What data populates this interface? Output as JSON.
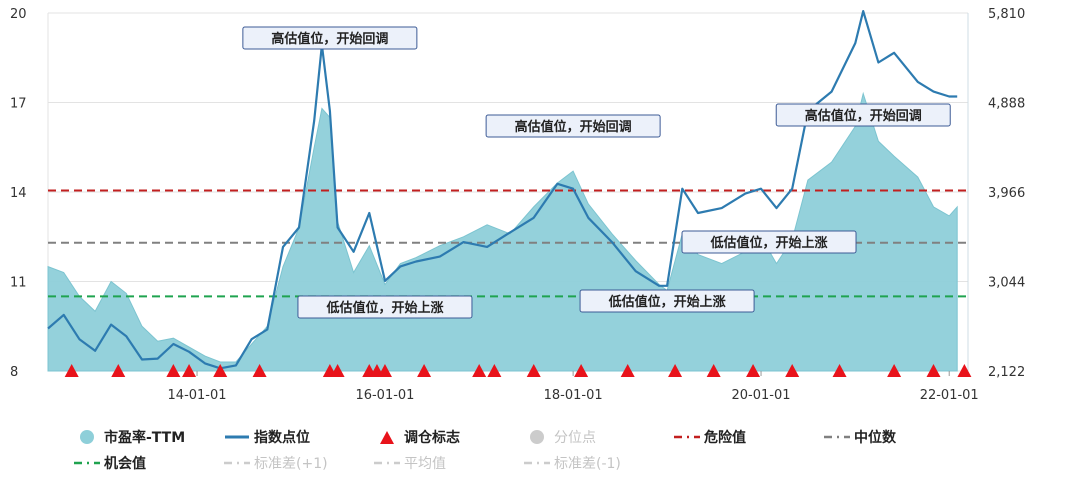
{
  "chart_data": {
    "type": "area+line",
    "x_ticks": [
      "14-01-01",
      "16-01-01",
      "18-01-01",
      "20-01-01",
      "22-01-01"
    ],
    "left_axis": {
      "ticks": [
        8,
        11,
        14,
        17,
        20
      ],
      "range": [
        8,
        20
      ]
    },
    "right_axis": {
      "ticks": [
        "2,122",
        "3,044",
        "3,966",
        "4,888",
        "5,810"
      ],
      "range": [
        2122,
        5810
      ]
    },
    "reference_lines": [
      {
        "name": "危险值",
        "value": 14.05,
        "color": "#c21f1f"
      },
      {
        "name": "中位数",
        "value": 12.3,
        "color": "#808080"
      },
      {
        "name": "机会值",
        "value": 10.5,
        "color": "#1fa34f"
      }
    ],
    "series": [
      {
        "name": "市盈率-TTM",
        "axis": "left",
        "color": "#8ecfd9",
        "x": [
          "2012-06",
          "2012-08",
          "2012-10",
          "2012-12",
          "2013-02",
          "2013-04",
          "2013-06",
          "2013-08",
          "2013-10",
          "2013-12",
          "2014-02",
          "2014-04",
          "2014-06",
          "2014-08",
          "2014-10",
          "2014-12",
          "2015-02",
          "2015-04",
          "2015-05",
          "2015-06",
          "2015-07",
          "2015-09",
          "2015-11",
          "2016-01",
          "2016-03",
          "2016-05",
          "2016-08",
          "2016-11",
          "2017-02",
          "2017-05",
          "2017-08",
          "2017-11",
          "2018-01",
          "2018-03",
          "2018-06",
          "2018-09",
          "2018-12",
          "2019-01",
          "2019-03",
          "2019-05",
          "2019-08",
          "2019-11",
          "2020-01",
          "2020-03",
          "2020-05",
          "2020-07",
          "2020-10",
          "2021-01",
          "2021-02",
          "2021-04",
          "2021-06",
          "2021-09",
          "2021-11",
          "2022-01",
          "2022-02"
        ],
        "values": [
          11.5,
          11.3,
          10.5,
          10.0,
          11.0,
          10.6,
          9.5,
          9.0,
          9.1,
          8.8,
          8.5,
          8.3,
          8.3,
          8.9,
          9.5,
          11.5,
          12.8,
          15.5,
          16.8,
          16.5,
          13.0,
          11.3,
          12.2,
          10.9,
          11.6,
          11.8,
          12.2,
          12.5,
          12.9,
          12.6,
          13.5,
          14.3,
          14.7,
          13.6,
          12.6,
          11.7,
          10.9,
          10.7,
          12.6,
          11.9,
          11.6,
          12.0,
          12.5,
          11.6,
          12.4,
          14.4,
          15.0,
          16.2,
          17.3,
          15.7,
          15.2,
          14.5,
          13.5,
          13.2,
          13.5
        ]
      },
      {
        "name": "指数点位",
        "axis": "right",
        "color": "#2d7bb0",
        "x": [
          "2012-06",
          "2012-08",
          "2012-10",
          "2012-12",
          "2013-02",
          "2013-04",
          "2013-06",
          "2013-08",
          "2013-10",
          "2013-12",
          "2014-02",
          "2014-04",
          "2014-06",
          "2014-08",
          "2014-10",
          "2014-12",
          "2015-02",
          "2015-04",
          "2015-05",
          "2015-06",
          "2015-07",
          "2015-09",
          "2015-11",
          "2016-01",
          "2016-03",
          "2016-05",
          "2016-08",
          "2016-11",
          "2017-02",
          "2017-05",
          "2017-08",
          "2017-11",
          "2018-01",
          "2018-03",
          "2018-06",
          "2018-09",
          "2018-12",
          "2019-01",
          "2019-03",
          "2019-05",
          "2019-08",
          "2019-11",
          "2020-01",
          "2020-03",
          "2020-05",
          "2020-07",
          "2020-10",
          "2021-01",
          "2021-02",
          "2021-04",
          "2021-06",
          "2021-09",
          "2021-11",
          "2022-01",
          "2022-02"
        ],
        "values": [
          2560,
          2700,
          2450,
          2330,
          2600,
          2480,
          2240,
          2250,
          2400,
          2320,
          2200,
          2150,
          2180,
          2450,
          2550,
          3400,
          3600,
          4700,
          5480,
          4800,
          3600,
          3350,
          3750,
          3050,
          3200,
          3250,
          3300,
          3450,
          3400,
          3550,
          3700,
          4050,
          4000,
          3700,
          3450,
          3150,
          3000,
          3000,
          4000,
          3750,
          3800,
          3950,
          4000,
          3800,
          4000,
          4800,
          5000,
          5500,
          5830,
          5300,
          5400,
          5100,
          5000,
          4950,
          4950
        ]
      }
    ],
    "signal_markers": {
      "name": "调仓标志",
      "color": "#e8131b",
      "x": [
        "2012-09",
        "2013-03",
        "2013-10",
        "2013-12",
        "2014-04",
        "2014-09",
        "2015-06",
        "2015-07",
        "2015-11",
        "2015-12",
        "2016-01",
        "2016-06",
        "2017-01",
        "2017-03",
        "2017-08",
        "2018-02",
        "2018-08",
        "2019-02",
        "2019-07",
        "2019-12",
        "2020-05",
        "2020-11",
        "2021-06",
        "2021-11",
        "2022-03"
      ]
    },
    "annotations": [
      {
        "text": "高估值位，开始回调",
        "x": "2015-06"
      },
      {
        "text": "低估值位，开始上涨",
        "x": "2016-01"
      },
      {
        "text": "高估值位，开始回调",
        "x": "2018-01"
      },
      {
        "text": "低估值位，开始上涨",
        "x": "2019-01"
      },
      {
        "text": "低估值位，开始上涨",
        "x": "2020-02"
      },
      {
        "text": "高估值位，开始回调",
        "x": "2021-02"
      }
    ]
  },
  "legend": [
    {
      "label": "市盈率-TTM",
      "symbol": "circle",
      "color": "#8ecfd9",
      "active": true
    },
    {
      "label": "指数点位",
      "symbol": "line",
      "color": "#2d7bb0",
      "active": true
    },
    {
      "label": "调仓标志",
      "symbol": "triangle",
      "color": "#e8131b",
      "active": true
    },
    {
      "label": "分位点",
      "symbol": "circle",
      "color": "#cccccc",
      "active": false
    },
    {
      "label": "危险值",
      "symbol": "dash",
      "color": "#c21f1f",
      "active": true
    },
    {
      "label": "中位数",
      "symbol": "dash",
      "color": "#808080",
      "active": true
    },
    {
      "label": "机会值",
      "symbol": "dash",
      "color": "#1fa34f",
      "active": true
    },
    {
      "label": "标准差(+1)",
      "symbol": "dash",
      "color": "#cccccc",
      "active": false
    },
    {
      "label": "平均值",
      "symbol": "dash",
      "color": "#cccccc",
      "active": false
    },
    {
      "label": "标准差(-1)",
      "symbol": "dash",
      "color": "#cccccc",
      "active": false
    }
  ]
}
